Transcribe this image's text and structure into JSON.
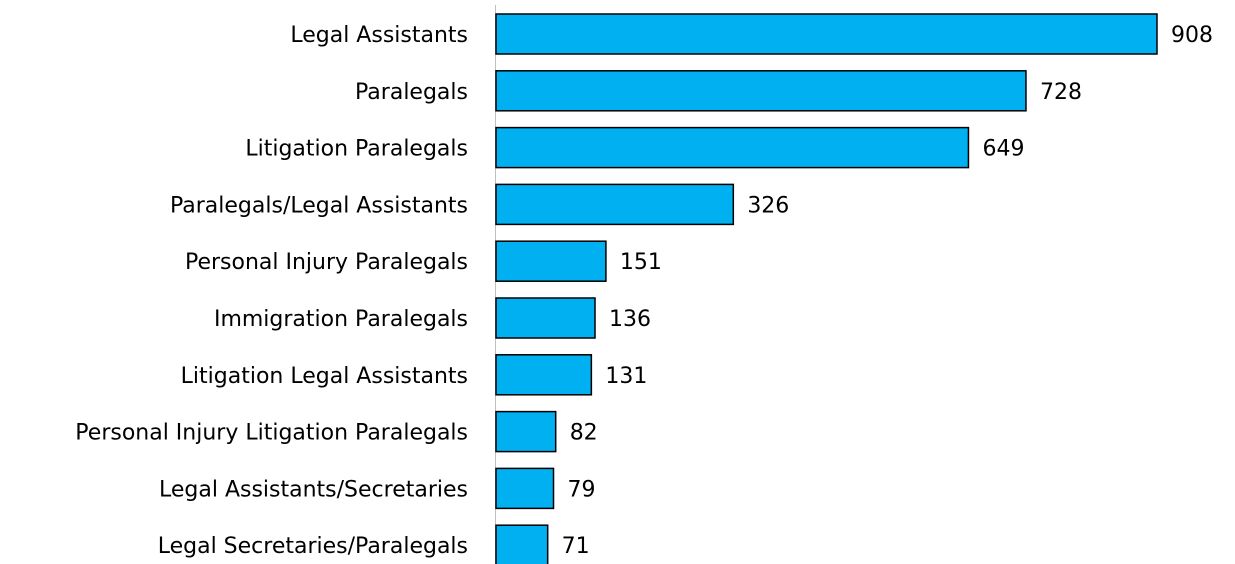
{
  "chart_data": {
    "type": "bar",
    "orientation": "horizontal",
    "categories": [
      "Legal Assistants",
      "Paralegals",
      "Litigation Paralegals",
      "Paralegals/Legal Assistants",
      "Personal Injury Paralegals",
      "Immigration Paralegals",
      "Litigation Legal Assistants",
      "Personal Injury Litigation Paralegals",
      "Legal Assistants/Secretaries",
      "Legal Secretaries/Paralegals"
    ],
    "values": [
      908,
      728,
      649,
      326,
      151,
      136,
      131,
      82,
      79,
      71
    ],
    "color": "#00b0f0"
  }
}
